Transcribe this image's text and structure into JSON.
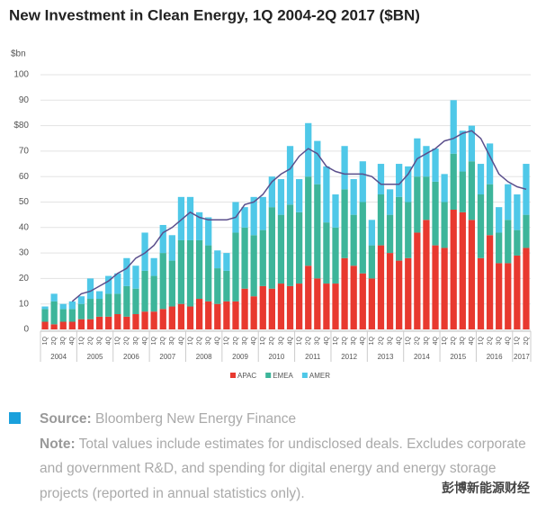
{
  "chart_data": {
    "type": "stacked-bar",
    "title": "New Investment in Clean Energy, 1Q 2004-2Q 2017 ($BN)",
    "y_axis_label": "$bn",
    "categories": [
      "1Q",
      "2Q",
      "3Q",
      "4Q",
      "1Q",
      "2Q",
      "3Q",
      "4Q",
      "1Q",
      "2Q",
      "3Q",
      "4Q",
      "1Q",
      "2Q",
      "3Q",
      "4Q",
      "1Q",
      "2Q",
      "3Q",
      "4Q",
      "1Q",
      "2Q",
      "3Q",
      "4Q",
      "1Q",
      "2Q",
      "3Q",
      "4Q",
      "1Q",
      "2Q",
      "3Q",
      "4Q",
      "1Q",
      "2Q",
      "3Q",
      "4Q",
      "1Q",
      "2Q",
      "3Q",
      "4Q",
      "1Q",
      "2Q",
      "3Q",
      "4Q",
      "1Q",
      "2Q",
      "3Q",
      "4Q",
      "1Q",
      "2Q",
      "3Q",
      "4Q",
      "1Q",
      "2Q"
    ],
    "years": [
      "2004",
      "2005",
      "2006",
      "2007",
      "2008",
      "2009",
      "2010",
      "2011",
      "2012",
      "2013",
      "2014",
      "2015",
      "2016",
      "2017"
    ],
    "series": [
      {
        "name": "APAC",
        "color": "#e8392f",
        "values": [
          3,
          2,
          3,
          3,
          4,
          4,
          5,
          5,
          6,
          5,
          6,
          7,
          7,
          8,
          9,
          10,
          9,
          12,
          11,
          10,
          11,
          11,
          16,
          13,
          17,
          16,
          18,
          17,
          18,
          25,
          20,
          18,
          18,
          28,
          25,
          22,
          20,
          33,
          30,
          27,
          28,
          38,
          43,
          33,
          32,
          47,
          46,
          43,
          28,
          37,
          26,
          26,
          29,
          32
        ]
      },
      {
        "name": "EMEA",
        "color": "#3db59a",
        "values": [
          5,
          9,
          5,
          5,
          6,
          8,
          7,
          9,
          8,
          12,
          10,
          16,
          14,
          22,
          18,
          25,
          26,
          23,
          22,
          14,
          12,
          27,
          24,
          24,
          22,
          32,
          27,
          32,
          28,
          35,
          37,
          24,
          22,
          27,
          20,
          28,
          13,
          20,
          15,
          25,
          22,
          22,
          17,
          25,
          18,
          22,
          16,
          23,
          25,
          20,
          12,
          17,
          10,
          13
        ]
      },
      {
        "name": "AMER",
        "color": "#4fc8e8",
        "values": [
          1,
          3,
          2,
          3,
          3,
          8,
          3,
          7,
          8,
          11,
          9,
          15,
          7,
          11,
          10,
          17,
          17,
          11,
          11,
          7,
          7,
          12,
          8,
          15,
          13,
          12,
          14,
          23,
          13,
          21,
          17,
          22,
          13,
          17,
          14,
          16,
          10,
          12,
          10,
          13,
          14,
          15,
          12,
          13,
          11,
          21,
          16,
          14,
          12,
          16,
          10,
          14,
          14,
          20
        ]
      }
    ],
    "trend": {
      "color": "#5b4f8c",
      "values": [
        null,
        null,
        null,
        11,
        14,
        15,
        17,
        19,
        22,
        24,
        28,
        30,
        33,
        38,
        40,
        43,
        46,
        44,
        43,
        43,
        43,
        44,
        49,
        50,
        53,
        58,
        61,
        63,
        68,
        71,
        69,
        64,
        62,
        61,
        61,
        61,
        60,
        57,
        57,
        57,
        61,
        67,
        69,
        71,
        74,
        75,
        77,
        78,
        75,
        68,
        61,
        58,
        56,
        55
      ]
    },
    "ylim": [
      0,
      100
    ],
    "yticks": [
      0,
      10,
      20,
      30,
      40,
      50,
      60,
      70,
      {
        "value": 80,
        "label": "$80"
      },
      90,
      100
    ],
    "grid": true
  },
  "notes": {
    "source_label": "Source:",
    "source_text": "Bloomberg New Energy Finance",
    "note_label": "Note:",
    "note_text": "Total values include estimates for undisclosed deals. Excludes corporate and government R&D, and spending for digital energy and energy storage projects (reported in annual statistics only).",
    "watermark": "彭博新能源财经"
  }
}
